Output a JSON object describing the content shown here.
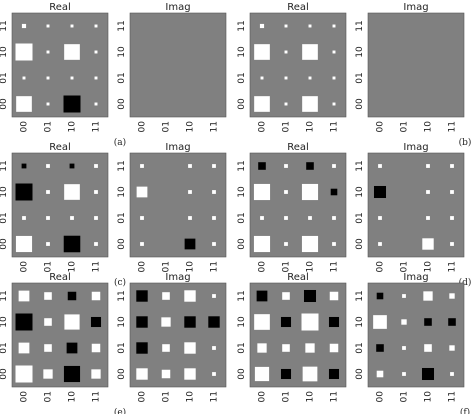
{
  "figure": {
    "colors": {
      "background": "#808080",
      "positive": "#ffffff",
      "negative": "#000000",
      "frame": "#555555"
    },
    "tick_labels": [
      "00",
      "01",
      "10",
      "11"
    ],
    "rows": [
      {
        "pairs": [
          {
            "sublabel": "(a)",
            "real": {
              "title": "Real",
              "cells": [
                [
                  0.06,
                  0.03,
                  0.03,
                  0.03
                ],
                [
                  1,
                  0.03,
                  0.85,
                  0.03
                ],
                [
                  0.03,
                  0.03,
                  0.03,
                  0.03
                ],
                [
                  0.85,
                  0.03,
                  -1,
                  0.03
                ]
              ]
            },
            "imag": {
              "title": "Imag",
              "cells": [
                [
                  0,
                  0,
                  0,
                  0
                ],
                [
                  0,
                  0,
                  0,
                  0
                ],
                [
                  0,
                  0,
                  0,
                  0
                ],
                [
                  0,
                  0,
                  0,
                  0
                ]
              ]
            }
          },
          {
            "sublabel": "(b)",
            "real": {
              "title": "Real",
              "cells": [
                [
                  0.06,
                  0.03,
                  0.03,
                  0.03
                ],
                [
                  0.85,
                  0.03,
                  0.85,
                  0.03
                ],
                [
                  0.03,
                  0.03,
                  0.03,
                  0.03
                ],
                [
                  0.85,
                  0.03,
                  0.85,
                  0.03
                ]
              ]
            },
            "imag": {
              "title": "Imag",
              "cells": [
                [
                  0,
                  0,
                  0,
                  0
                ],
                [
                  0,
                  0,
                  0,
                  0
                ],
                [
                  0,
                  0,
                  0,
                  0
                ],
                [
                  0,
                  0,
                  0,
                  0
                ]
              ]
            }
          }
        ]
      },
      {
        "pairs": [
          {
            "sublabel": "(c)",
            "real": {
              "title": "Real",
              "cells": [
                [
                  -0.08,
                  0.05,
                  -0.08,
                  0.05
                ],
                [
                  -1,
                  0.05,
                  0.85,
                  0.05
                ],
                [
                  0.05,
                  0.05,
                  0.05,
                  0.05
                ],
                [
                  0.9,
                  0.05,
                  -0.95,
                  0.05
                ]
              ]
            },
            "imag": {
              "title": "Imag",
              "cells": [
                [
                  0.05,
                  0,
                  0.05,
                  0.05
                ],
                [
                  0.4,
                  0,
                  0.05,
                  0.05
                ],
                [
                  0.05,
                  0,
                  0.05,
                  0.05
                ],
                [
                  0.05,
                  0,
                  -0.4,
                  0.05
                ]
              ]
            }
          },
          {
            "sublabel": "(d)",
            "real": {
              "title": "Real",
              "cells": [
                [
                  -0.2,
                  0.05,
                  -0.2,
                  0.05
                ],
                [
                  0.9,
                  0.05,
                  0.9,
                  -0.15
                ],
                [
                  0.05,
                  0.05,
                  0.05,
                  0.05
                ],
                [
                  0.9,
                  0.05,
                  0.9,
                  0.05
                ]
              ]
            },
            "imag": {
              "title": "Imag",
              "cells": [
                [
                  0.05,
                  0,
                  0.05,
                  0.05
                ],
                [
                  -0.5,
                  0,
                  0.05,
                  0.05
                ],
                [
                  0.05,
                  0,
                  0.05,
                  0.05
                ],
                [
                  0.05,
                  0,
                  0.45,
                  0.05
                ]
              ]
            }
          }
        ]
      },
      {
        "pairs": [
          {
            "sublabel": "(e)",
            "real": {
              "title": "Real",
              "cells": [
                [
                  0.4,
                  0.2,
                  -0.25,
                  0.25
                ],
                [
                  -1,
                  0.2,
                  0.8,
                  -0.35
                ],
                [
                  0.4,
                  0.2,
                  -0.4,
                  0.25
                ],
                [
                  1,
                  0.3,
                  -0.9,
                  0.3
                ]
              ]
            },
            "imag": {
              "title": "Imag",
              "cells": [
                [
                  -0.45,
                  0.2,
                  0.45,
                  0.05
                ],
                [
                  -0.45,
                  0.3,
                  -0.45,
                  -0.45
                ],
                [
                  -0.45,
                  0.2,
                  0.45,
                  0.05
                ],
                [
                  0.45,
                  0.25,
                  0.45,
                  0.05
                ]
              ]
            }
          },
          {
            "sublabel": "(f)",
            "real": {
              "title": "Real",
              "cells": [
                [
                  -0.4,
                  0.2,
                  -0.5,
                  0.25
                ],
                [
                  0.85,
                  -0.35,
                  1,
                  -0.35
                ],
                [
                  0.3,
                  0.2,
                  0.3,
                  0.25
                ],
                [
                  0.7,
                  -0.35,
                  0.75,
                  -0.35
                ]
              ]
            },
            "imag": {
              "title": "Imag",
              "cells": [
                [
                  -0.15,
                  0.05,
                  0.3,
                  0.1
                ],
                [
                  0.65,
                  0.1,
                  -0.2,
                  -0.2
                ],
                [
                  -0.2,
                  0.05,
                  0.2,
                  0.1
                ],
                [
                  0.15,
                  0.05,
                  -0.5,
                  0.05
                ]
              ]
            }
          }
        ]
      }
    ]
  }
}
